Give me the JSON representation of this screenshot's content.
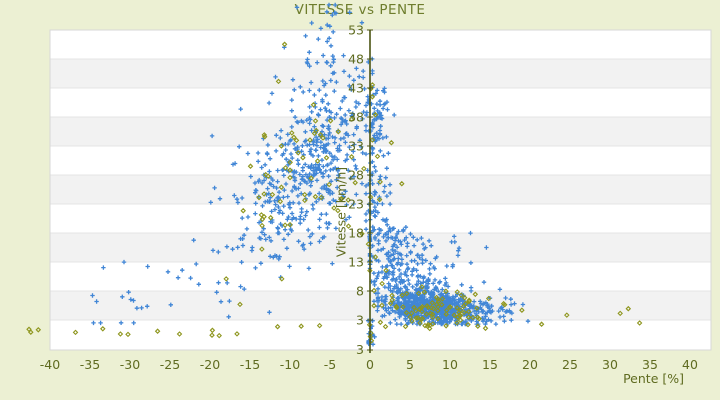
{
  "chart_data": {
    "type": "scatter",
    "title": "VITESSE vs PENTE",
    "xlabel": "Pente [%]",
    "ylabel": "Vitesse [km/h]",
    "xlim": [
      -40,
      42.5
    ],
    "ylim": [
      -2,
      53
    ],
    "x_ticks": [
      -40,
      -35,
      -30,
      -25,
      -20,
      -15,
      -10,
      -5,
      0,
      5,
      10,
      15,
      20,
      25,
      30,
      35,
      40
    ],
    "y_ticks": [
      53,
      48,
      43,
      38,
      33,
      28,
      23,
      18,
      13,
      8,
      3
    ],
    "y_axis_bottom_extra_label": "3",
    "grid": "horizontal-stripes",
    "legend": "none",
    "axis_style": "y-axis-drawn-at-x-zero",
    "seed": 42,
    "colors": {
      "page_background": "#ecf0d3",
      "band_a": "#ffffff",
      "band_b": "#f2f2f2",
      "grid_line": "#e4e4e4",
      "plot_border": "#d7d7d7",
      "axis_line": "#4b5413",
      "tick_label": "#5f6b20",
      "title": "#6e7d2d",
      "series_blue": "#4186d6",
      "series_olive": "#8e961e"
    },
    "series": [
      {
        "name": "vitesse-points-bleus",
        "marker": "plus",
        "color": "#4186d6",
        "clusters": [
          {
            "name": "downhill-cloud",
            "n": 500,
            "x": [
              "norm",
              -7.5,
              4.3,
              -24,
              0.3
            ],
            "y": [
              "lin",
              38.5,
              1.15,
              7.0,
              4,
              56
            ]
          },
          {
            "name": "summit-spill",
            "n": 26,
            "x": [
              "norm",
              -6,
              2.2,
              -13,
              -1
            ],
            "y": [
              "uni",
              47,
              57.5
            ]
          },
          {
            "name": "axis-column-high",
            "n": 120,
            "x": [
              "norm",
              0.9,
              0.9,
              -0.5,
              4
            ],
            "y": [
              "uni",
              17,
              43
            ]
          },
          {
            "name": "knee",
            "n": 120,
            "x": [
              "norm",
              2.8,
              2.0,
              0,
              9
            ],
            "y": [
              "uni",
              9.5,
              19
            ]
          },
          {
            "name": "uphill-core",
            "n": 600,
            "x": [
              "norm",
              8,
              3.1,
              1,
              20
            ],
            "y": [
              "lin",
              6.2,
              -0.13,
              1.5,
              2.3,
              11
            ]
          },
          {
            "name": "uphill-mid",
            "n": 170,
            "x": [
              "norm",
              5.5,
              2.4,
              0.5,
              13
            ],
            "y": [
              "lin",
              8,
              -0.2,
              2.4,
              2.5,
              15
            ]
          },
          {
            "name": "mid-right-sparse",
            "n": 40,
            "x": [
              "norm",
              8,
              3.5,
              2,
              18
            ],
            "y": [
              "uni",
              9,
              18
            ]
          },
          {
            "name": "left-sparse",
            "n": 32,
            "x": [
              "uni",
              -36,
              -13
            ],
            "y": [
              "lin",
              36,
              1.0,
              5,
              2.5,
              28
            ]
          },
          {
            "name": "zero-speed-column",
            "n": 20,
            "x": [
              "norm",
              0,
              0.2,
              -0.6,
              0.6
            ],
            "y": [
              "uni",
              -1.5,
              3
            ]
          },
          {
            "name": "right-tail",
            "n": 28,
            "x": [
              "norm",
              16,
              2.0,
              12.5,
              21
            ],
            "y": [
              "lin",
              4.6,
              0,
              1.0,
              2.8,
              7
            ]
          },
          {
            "name": "low-left",
            "n": 6,
            "x": [
              "uni",
              -30,
              -10
            ],
            "y": [
              "uni",
              3.5,
              8
            ]
          }
        ]
      },
      {
        "name": "vitesse-points-olive",
        "marker": "diamond",
        "color": "#8e961e",
        "clusters": [
          {
            "name": "downhill-cloud",
            "n": 65,
            "x": [
              "norm",
              -7.5,
              4.6,
              -23,
              0.3
            ],
            "y": [
              "lin",
              38,
              1.1,
              8,
              2,
              53
            ]
          },
          {
            "name": "uphill-cluster",
            "n": 85,
            "x": [
              "norm",
              8.5,
              3.6,
              0.5,
              20.5
            ],
            "y": [
              "lin",
              6.0,
              -0.12,
              1.8,
              0.8,
              11
            ]
          },
          {
            "name": "bottom-row-left",
            "n": 13,
            "x": [
              "uni",
              -45,
              -16
            ],
            "y": [
              "uni",
              0.2,
              1.6
            ]
          },
          {
            "name": "bottom-row-mid",
            "n": 9,
            "x": [
              "uni",
              -14,
              10
            ],
            "y": [
              "uni",
              0.6,
              3
            ]
          },
          {
            "name": "right-outliers",
            "n": 6,
            "x": [
              "uni",
              17,
              36
            ],
            "y": [
              "uni",
              1,
              5.5
            ]
          },
          {
            "name": "axis-column-high",
            "n": 14,
            "x": [
              "norm",
              1.2,
              1.4,
              -0.5,
              5
            ],
            "y": [
              "uni",
              5,
              44
            ]
          },
          {
            "name": "zero-speed-column",
            "n": 4,
            "x": [
              "norm",
              0,
              0.15,
              -0.4,
              0.4
            ],
            "y": [
              "uni",
              -1,
              3
            ]
          }
        ]
      }
    ]
  }
}
